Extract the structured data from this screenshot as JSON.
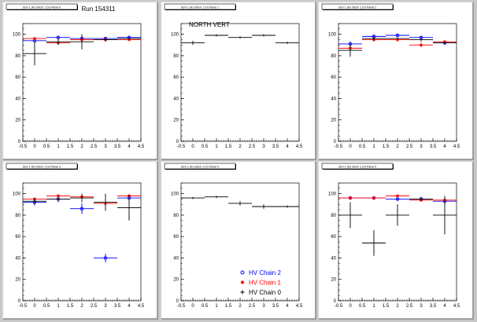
{
  "run_label": "Run 154311",
  "legend": {
    "items": [
      {
        "label": "HV Chain 2",
        "color": "#0000ff",
        "marker": "circle"
      },
      {
        "label": "HV Chain 1",
        "color": "#ff0000",
        "marker": "star"
      },
      {
        "label": "HV Chain 0",
        "color": "#000000",
        "marker": "plus"
      }
    ]
  },
  "colors": {
    "chain2": "#0000ff",
    "chain1": "#ff0000",
    "chain0": "#000000",
    "background": "#c8c8c8",
    "pad": "#ffffff"
  },
  "chart_data": [
    {
      "type": "scatter",
      "title": "dcm 1 (H) Odcm 1 (V) Panel 0",
      "annotation": "",
      "xlim": [
        -0.5,
        4.5
      ],
      "ylim": [
        0,
        110
      ],
      "xticks": [
        "-0.5",
        "0",
        "0.5",
        "1",
        "1.5",
        "2",
        "2.5",
        "3",
        "3.5",
        "4",
        "4.5"
      ],
      "yticks": [
        "0",
        "20",
        "40",
        "60",
        "80",
        "100"
      ],
      "series": [
        {
          "color": "#0000ff",
          "marker": "circle",
          "points": [
            {
              "x": 0,
              "y": 94,
              "ex": 0.5,
              "ey": 2
            },
            {
              "x": 1,
              "y": 97,
              "ex": 0.5,
              "ey": 1
            },
            {
              "x": 2,
              "y": 96,
              "ex": 0.5,
              "ey": 2
            },
            {
              "x": 3,
              "y": 96,
              "ex": 0.5,
              "ey": 1
            },
            {
              "x": 4,
              "y": 97,
              "ex": 0.5,
              "ey": 1
            }
          ]
        },
        {
          "color": "#ff0000",
          "marker": "star",
          "points": [
            {
              "x": 0,
              "y": 96,
              "ex": 0.5,
              "ey": 1
            },
            {
              "x": 1,
              "y": 92,
              "ex": 0.5,
              "ey": 2
            },
            {
              "x": 2,
              "y": 95,
              "ex": 0.5,
              "ey": 2
            },
            {
              "x": 3,
              "y": 95,
              "ex": 0.5,
              "ey": 1
            },
            {
              "x": 4,
              "y": 95,
              "ex": 0.5,
              "ey": 1
            }
          ]
        },
        {
          "color": "#000000",
          "marker": "plus",
          "points": [
            {
              "x": 0,
              "y": 82,
              "ex": 0.5,
              "ey": 11
            },
            {
              "x": 1,
              "y": 93,
              "ex": 0.5,
              "ey": 3
            },
            {
              "x": 2,
              "y": 93,
              "ex": 0.5,
              "ey": 7
            },
            {
              "x": 3,
              "y": 95,
              "ex": 0.5,
              "ey": 2
            },
            {
              "x": 4,
              "y": 96,
              "ex": 0.5,
              "ey": 1
            }
          ]
        }
      ]
    },
    {
      "type": "scatter",
      "title": "dcm 1 (H) Odcm 1 (V) Panel 1",
      "annotation": "NORTH VERT",
      "xlim": [
        -0.5,
        4.5
      ],
      "ylim": [
        0,
        110
      ],
      "xticks": [
        "-0.5",
        "0",
        "0.5",
        "1",
        "1.5",
        "2",
        "2.5",
        "3",
        "3.5",
        "4",
        "4.5"
      ],
      "yticks": [
        "0",
        "20",
        "40",
        "60",
        "80",
        "100"
      ],
      "series": [
        {
          "color": "#000000",
          "marker": "plus",
          "points": [
            {
              "x": 0,
              "y": 92,
              "ex": 0.5,
              "ey": 2
            },
            {
              "x": 1,
              "y": 99,
              "ex": 0.5,
              "ey": 1
            },
            {
              "x": 2,
              "y": 97,
              "ex": 0.5,
              "ey": 1
            },
            {
              "x": 3,
              "y": 99,
              "ex": 0.5,
              "ey": 1
            },
            {
              "x": 4,
              "y": 92,
              "ex": 0.5,
              "ey": 1
            }
          ]
        }
      ]
    },
    {
      "type": "scatter",
      "title": "dcm 1 (H) Odcm 1 (V) Panel 2",
      "annotation": "",
      "xlim": [
        -0.5,
        4.5
      ],
      "ylim": [
        0,
        110
      ],
      "xticks": [
        "-0.5",
        "0",
        "0.5",
        "1",
        "1.5",
        "2",
        "2.5",
        "3",
        "3.5",
        "4",
        "4.5"
      ],
      "yticks": [
        "0",
        "20",
        "40",
        "60",
        "80",
        "100"
      ],
      "series": [
        {
          "color": "#0000ff",
          "marker": "circle",
          "points": [
            {
              "x": 0,
              "y": 91,
              "ex": 0.5,
              "ey": 2
            },
            {
              "x": 1,
              "y": 98,
              "ex": 0.5,
              "ey": 1
            },
            {
              "x": 2,
              "y": 99,
              "ex": 0.5,
              "ey": 1
            },
            {
              "x": 3,
              "y": 97,
              "ex": 0.5,
              "ey": 1
            },
            {
              "x": 4,
              "y": 92,
              "ex": 0.5,
              "ey": 2
            }
          ]
        },
        {
          "color": "#ff0000",
          "marker": "star",
          "points": [
            {
              "x": 0,
              "y": 87,
              "ex": 0.5,
              "ey": 3
            },
            {
              "x": 1,
              "y": 95,
              "ex": 0.5,
              "ey": 2
            },
            {
              "x": 2,
              "y": 95,
              "ex": 0.5,
              "ey": 2
            },
            {
              "x": 3,
              "y": 90,
              "ex": 0.5,
              "ey": 2
            },
            {
              "x": 4,
              "y": 93,
              "ex": 0.5,
              "ey": 1
            }
          ]
        },
        {
          "color": "#000000",
          "marker": "plus",
          "points": [
            {
              "x": 0,
              "y": 85,
              "ex": 0.5,
              "ey": 6
            },
            {
              "x": 1,
              "y": 96,
              "ex": 0.5,
              "ey": 2
            },
            {
              "x": 2,
              "y": 96,
              "ex": 0.5,
              "ey": 1
            },
            {
              "x": 3,
              "y": 95,
              "ex": 0.5,
              "ey": 2
            },
            {
              "x": 4,
              "y": 92,
              "ex": 0.5,
              "ey": 1
            }
          ]
        }
      ]
    },
    {
      "type": "scatter",
      "title": "dcm 1 (H) Odcm 1 (V) Panel 3",
      "annotation": "",
      "xlim": [
        -0.5,
        4.5
      ],
      "ylim": [
        0,
        110
      ],
      "xticks": [
        "-0.5",
        "0",
        "0.5",
        "1",
        "1.5",
        "2",
        "2.5",
        "3",
        "3.5",
        "4",
        "4.5"
      ],
      "yticks": [
        "0",
        "20",
        "40",
        "60",
        "80",
        "100"
      ],
      "series": [
        {
          "color": "#0000ff",
          "marker": "circle",
          "points": [
            {
              "x": 0,
              "y": 92,
              "ex": 0.5,
              "ey": 3
            },
            {
              "x": 1,
              "y": 95,
              "ex": 0.5,
              "ey": 3
            },
            {
              "x": 2,
              "y": 86,
              "ex": 0.5,
              "ey": 5
            },
            {
              "x": 3,
              "y": 40,
              "ex": 0.5,
              "ey": 4
            },
            {
              "x": 4,
              "y": 96,
              "ex": 0.5,
              "ey": 2
            }
          ]
        },
        {
          "color": "#ff0000",
          "marker": "star",
          "points": [
            {
              "x": 0,
              "y": 95,
              "ex": 0.5,
              "ey": 1
            },
            {
              "x": 1,
              "y": 98,
              "ex": 0.5,
              "ey": 1
            },
            {
              "x": 2,
              "y": 97,
              "ex": 0.5,
              "ey": 1
            },
            {
              "x": 3,
              "y": 91,
              "ex": 0.5,
              "ey": 2
            },
            {
              "x": 4,
              "y": 98,
              "ex": 0.5,
              "ey": 1
            }
          ]
        },
        {
          "color": "#000000",
          "marker": "plus",
          "points": [
            {
              "x": 0,
              "y": 93,
              "ex": 0.5,
              "ey": 3
            },
            {
              "x": 1,
              "y": 95,
              "ex": 0.5,
              "ey": 2
            },
            {
              "x": 2,
              "y": 96,
              "ex": 0.5,
              "ey": 4
            },
            {
              "x": 3,
              "y": 92,
              "ex": 0.5,
              "ey": 8
            },
            {
              "x": 4,
              "y": 87,
              "ex": 0.5,
              "ey": 12
            }
          ]
        }
      ]
    },
    {
      "type": "scatter",
      "title": "dcm 1 (H) Odcm 1 (V) Panel 4",
      "annotation": "",
      "xlim": [
        -0.5,
        4.5
      ],
      "ylim": [
        0,
        110
      ],
      "xticks": [
        "-0.5",
        "0",
        "0.5",
        "1",
        "1.5",
        "2",
        "2.5",
        "3",
        "3.5",
        "4",
        "4.5"
      ],
      "yticks": [
        "0",
        "20",
        "40",
        "60",
        "80",
        "100"
      ],
      "series": [
        {
          "color": "#000000",
          "marker": "plus",
          "points": [
            {
              "x": 0,
              "y": 96,
              "ex": 0.5,
              "ey": 1
            },
            {
              "x": 1,
              "y": 97,
              "ex": 0.5,
              "ey": 1
            },
            {
              "x": 2,
              "y": 91,
              "ex": 0.5,
              "ey": 2
            },
            {
              "x": 3,
              "y": 88,
              "ex": 0.5,
              "ey": 2
            },
            {
              "x": 4,
              "y": 88,
              "ex": 0.5,
              "ey": 1
            }
          ]
        }
      ]
    },
    {
      "type": "scatter",
      "title": "dcm 1 (H) Odcm 1 (V) Panel 5",
      "annotation": "",
      "xlim": [
        -0.5,
        4.5
      ],
      "ylim": [
        0,
        110
      ],
      "xticks": [
        "-0.5",
        "0",
        "0.5",
        "1",
        "1.5",
        "2",
        "2.5",
        "3",
        "3.5",
        "4",
        "4.5"
      ],
      "yticks": [
        "0",
        "20",
        "40",
        "60",
        "80",
        "100"
      ],
      "series": [
        {
          "color": "#0000ff",
          "marker": "circle",
          "points": [
            {
              "x": 0,
              "y": 96,
              "ex": 0.5,
              "ey": 1
            },
            {
              "x": 1,
              "y": 96,
              "ex": 0.5,
              "ey": 1
            },
            {
              "x": 2,
              "y": 95,
              "ex": 0.5,
              "ey": 2
            },
            {
              "x": 3,
              "y": 95,
              "ex": 0.5,
              "ey": 2
            },
            {
              "x": 4,
              "y": 93,
              "ex": 0.5,
              "ey": 3
            }
          ]
        },
        {
          "color": "#ff0000",
          "marker": "star",
          "points": [
            {
              "x": 0,
              "y": 96,
              "ex": 0.5,
              "ey": 1
            },
            {
              "x": 1,
              "y": 96,
              "ex": 0.5,
              "ey": 1
            },
            {
              "x": 2,
              "y": 98,
              "ex": 0.5,
              "ey": 1
            },
            {
              "x": 3,
              "y": 94,
              "ex": 0.5,
              "ey": 1
            },
            {
              "x": 4,
              "y": 94,
              "ex": 0.5,
              "ey": 1
            }
          ]
        },
        {
          "color": "#000000",
          "marker": "plus",
          "points": [
            {
              "x": 0,
              "y": 80,
              "ex": 0.5,
              "ey": 12
            },
            {
              "x": 1,
              "y": 54,
              "ex": 0.5,
              "ey": 12
            },
            {
              "x": 2,
              "y": 80,
              "ex": 0.5,
              "ey": 10
            },
            {
              "x": 3,
              "y": 95,
              "ex": 0.5,
              "ey": 2
            },
            {
              "x": 4,
              "y": 80,
              "ex": 0.5,
              "ey": 18
            }
          ]
        }
      ]
    }
  ]
}
